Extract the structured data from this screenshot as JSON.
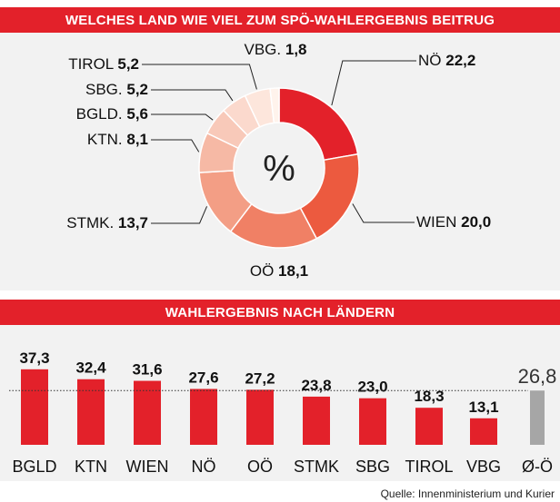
{
  "banners": {
    "top": "WELCHES LAND WIE VIEL ZUM SPÖ-WAHLERGEBNIS BEITRUG",
    "bottom": "WAHLERGEBNIS NACH LÄNDERN"
  },
  "source": "Quelle: Innenministerium und Kurier",
  "colors": {
    "accent": "#e3212a",
    "average_bar": "#a6a6a6",
    "panel": "#f2f2f2"
  },
  "chart_data": [
    {
      "type": "pie",
      "donut": true,
      "center_label": "%",
      "labels": [
        "NÖ",
        "WIEN",
        "OÖ",
        "STMK.",
        "KTN.",
        "BGLD.",
        "SBG.",
        "TIROL",
        "VBG."
      ],
      "value_labels": [
        "22,2",
        "20,0",
        "18,1",
        "13,7",
        "8,1",
        "5,6",
        "5,2",
        "5,2",
        "1,8"
      ],
      "values": [
        22.2,
        20.0,
        18.1,
        13.7,
        8.1,
        5.6,
        5.2,
        5.2,
        1.8
      ],
      "colors": [
        "#e3212a",
        "#ec5a3f",
        "#f08065",
        "#f39e85",
        "#f6b9a5",
        "#f8c9b9",
        "#fbd9cd",
        "#fde6dc",
        "#fff3ec"
      ]
    },
    {
      "type": "bar",
      "categories": [
        "BGLD",
        "KTN",
        "WIEN",
        "NÖ",
        "OÖ",
        "STMK",
        "SBG",
        "TIROL",
        "VBG"
      ],
      "values": [
        37.3,
        32.4,
        31.6,
        27.6,
        27.2,
        23.8,
        23.0,
        18.3,
        13.1
      ],
      "value_labels": [
        "37,3",
        "32,4",
        "31,6",
        "27,6",
        "27,2",
        "23,8",
        "23,0",
        "18,3",
        "13,1"
      ],
      "average": {
        "category": "Ø-Ö",
        "value": 26.8,
        "value_label": "26,8"
      },
      "grid": false
    }
  ]
}
